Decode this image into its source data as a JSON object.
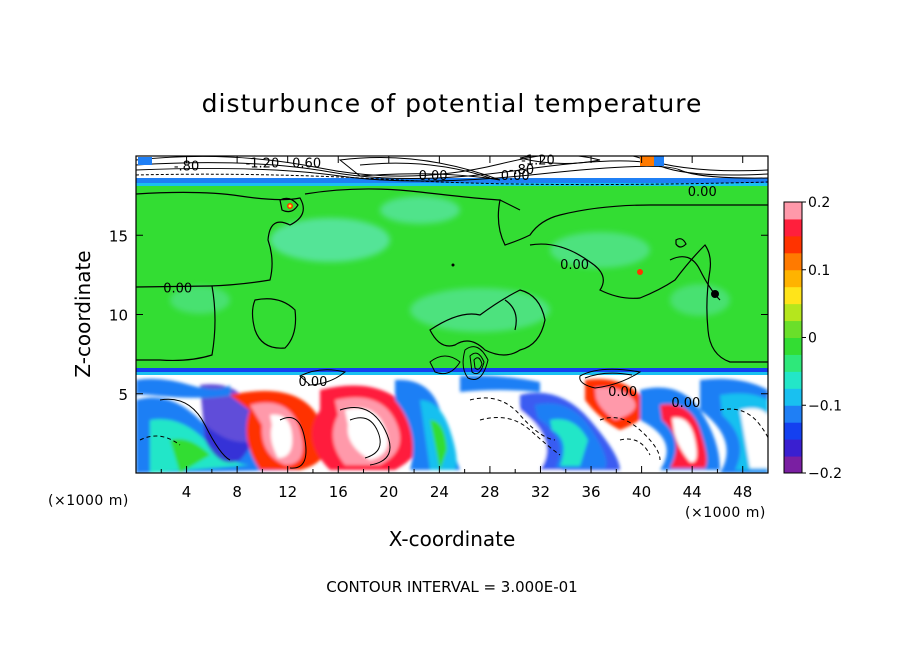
{
  "chart_data": {
    "type": "heatmap",
    "title": "disturbunce of potential temperature",
    "xlabel": "X-coordinate",
    "ylabel": "Z-coordinate",
    "x_unit": "(×1000 m)",
    "z_unit": "(×1000 m)",
    "xlim": [
      0,
      50
    ],
    "ylim": [
      0,
      20
    ],
    "x_ticks": [
      4,
      8,
      12,
      16,
      20,
      24,
      28,
      32,
      36,
      40,
      44,
      48
    ],
    "y_ticks": [
      5,
      10,
      15
    ],
    "colorbar": {
      "min": -0.2,
      "max": 0.2,
      "ticks": [
        {
          "value": 0.2,
          "label": "0.2"
        },
        {
          "value": 0.1,
          "label": "0.1"
        },
        {
          "value": 0.0,
          "label": "0"
        },
        {
          "value": -0.1,
          "label": "−0.1"
        },
        {
          "value": -0.2,
          "label": "−0.2"
        }
      ],
      "colors": [
        "#7a1fa2",
        "#3a1fd0",
        "#1440f0",
        "#1f7ff5",
        "#19c0f0",
        "#23e6c8",
        "#2ee87a",
        "#33dd33",
        "#6adf2a",
        "#b5e61d",
        "#ffe41a",
        "#ffb300",
        "#ff7a00",
        "#ff3300",
        "#ff1f3c",
        "#ff99aa"
      ]
    },
    "contour_interval_text": "CONTOUR INTERVAL = 3.000E-01",
    "contour_labels": [
      {
        "text": "0.00",
        "x": 3.3,
        "z": 11.5
      },
      {
        "text": "0.00",
        "x": 44.8,
        "z": 17.6
      },
      {
        "text": "0.00",
        "x": 34.7,
        "z": 13.0
      },
      {
        "text": "0.00",
        "x": 30.0,
        "z": 18.6
      },
      {
        "text": "0.00",
        "x": 23.5,
        "z": 18.6
      },
      {
        "text": "0.00",
        "x": 14.0,
        "z": 5.6
      },
      {
        "text": "0.00",
        "x": 38.5,
        "z": 5.0
      },
      {
        "text": "0.00",
        "x": 43.5,
        "z": 4.3
      },
      {
        "text": "-1.20",
        "x": 10.0,
        "z": 19.4
      },
      {
        "text": "-1.20",
        "x": 31.8,
        "z": 19.6
      },
      {
        "text": "0.60",
        "x": 13.5,
        "z": 19.4
      },
      {
        "text": "-.80",
        "x": 4.0,
        "z": 19.2
      },
      {
        "text": "-.80",
        "x": 30.5,
        "z": 19.0
      }
    ]
  }
}
